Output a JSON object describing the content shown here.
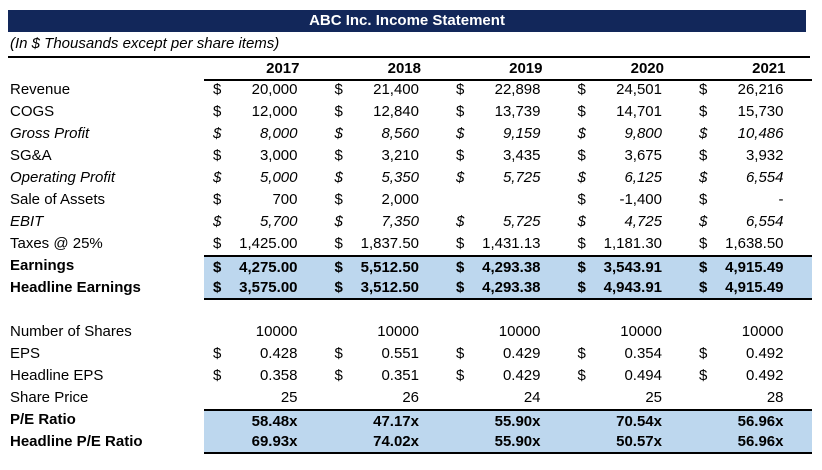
{
  "colors": {
    "title_bar_bg": "#12275A",
    "title_text": "#FFFFFF",
    "highlight_bg": "#BDD7EE",
    "rule_color": "#000000"
  },
  "title": "ABC Inc. Income Statement",
  "subtitle": "(In $ Thousands except per share items)",
  "table": {
    "columns": [
      "2017",
      "2018",
      "2019",
      "2020",
      "2021"
    ],
    "rows": [
      {
        "label": "Revenue",
        "style": "plain",
        "highlight": false,
        "cells": [
          {
            "d": "$",
            "v": "20,000"
          },
          {
            "d": "$",
            "v": "21,400"
          },
          {
            "d": "$",
            "v": "22,898"
          },
          {
            "d": "$",
            "v": "24,501"
          },
          {
            "d": "$",
            "v": "26,216"
          }
        ]
      },
      {
        "label": "COGS",
        "style": "plain",
        "highlight": false,
        "cells": [
          {
            "d": "$",
            "v": "12,000"
          },
          {
            "d": "$",
            "v": "12,840"
          },
          {
            "d": "$",
            "v": "13,739"
          },
          {
            "d": "$",
            "v": "14,701"
          },
          {
            "d": "$",
            "v": "15,730"
          }
        ]
      },
      {
        "label": "Gross Profit",
        "style": "italic",
        "highlight": false,
        "cells": [
          {
            "d": "$",
            "v": "8,000"
          },
          {
            "d": "$",
            "v": "8,560"
          },
          {
            "d": "$",
            "v": "9,159"
          },
          {
            "d": "$",
            "v": "9,800"
          },
          {
            "d": "$",
            "v": "10,486"
          }
        ]
      },
      {
        "label": "SG&A",
        "style": "plain",
        "highlight": false,
        "cells": [
          {
            "d": "$",
            "v": "3,000"
          },
          {
            "d": "$",
            "v": "3,210"
          },
          {
            "d": "$",
            "v": "3,435"
          },
          {
            "d": "$",
            "v": "3,675"
          },
          {
            "d": "$",
            "v": "3,932"
          }
        ]
      },
      {
        "label": "Operating Profit",
        "style": "italic",
        "highlight": false,
        "cells": [
          {
            "d": "$",
            "v": "5,000"
          },
          {
            "d": "$",
            "v": "5,350"
          },
          {
            "d": "$",
            "v": "5,725"
          },
          {
            "d": "$",
            "v": "6,125"
          },
          {
            "d": "$",
            "v": "6,554"
          }
        ]
      },
      {
        "label": "Sale of Assets",
        "style": "plain",
        "highlight": false,
        "cells": [
          {
            "d": "$",
            "v": "700"
          },
          {
            "d": "$",
            "v": "2,000"
          },
          {
            "d": "",
            "v": ""
          },
          {
            "d": "$",
            "v": "-1,400"
          },
          {
            "d": "$",
            "v": "-"
          }
        ]
      },
      {
        "label": "EBIT",
        "style": "italic",
        "highlight": false,
        "cells": [
          {
            "d": "$",
            "v": "5,700"
          },
          {
            "d": "$",
            "v": "7,350"
          },
          {
            "d": "$",
            "v": "5,725"
          },
          {
            "d": "$",
            "v": "4,725"
          },
          {
            "d": "$",
            "v": "6,554"
          }
        ]
      },
      {
        "label": "Taxes @ 25%",
        "style": "plain",
        "highlight": false,
        "cells": [
          {
            "d": "$",
            "v": "1,425.00"
          },
          {
            "d": "$",
            "v": "1,837.50"
          },
          {
            "d": "$",
            "v": "1,431.13"
          },
          {
            "d": "$",
            "v": "1,181.30"
          },
          {
            "d": "$",
            "v": "1,638.50"
          }
        ]
      },
      {
        "label": "Earnings",
        "style": "bold",
        "highlight": true,
        "rule_top": true,
        "cells": [
          {
            "d": "$",
            "v": "4,275.00"
          },
          {
            "d": "$",
            "v": "5,512.50"
          },
          {
            "d": "$",
            "v": "4,293.38"
          },
          {
            "d": "$",
            "v": "3,543.91"
          },
          {
            "d": "$",
            "v": "4,915.49"
          }
        ]
      },
      {
        "label": "Headline Earnings",
        "style": "bold",
        "highlight": true,
        "rule_bottom": true,
        "cells": [
          {
            "d": "$",
            "v": "3,575.00"
          },
          {
            "d": "$",
            "v": "3,512.50"
          },
          {
            "d": "$",
            "v": "4,293.38"
          },
          {
            "d": "$",
            "v": "4,943.91"
          },
          {
            "d": "$",
            "v": "4,915.49"
          }
        ]
      },
      {
        "spacer": true
      },
      {
        "label": "Number of Shares",
        "style": "plain",
        "highlight": false,
        "cells": [
          {
            "d": "",
            "v": "10000"
          },
          {
            "d": "",
            "v": "10000"
          },
          {
            "d": "",
            "v": "10000"
          },
          {
            "d": "",
            "v": "10000"
          },
          {
            "d": "",
            "v": "10000"
          }
        ]
      },
      {
        "label": "EPS",
        "style": "plain",
        "highlight": false,
        "cells": [
          {
            "d": "$",
            "v": "0.428"
          },
          {
            "d": "$",
            "v": "0.551"
          },
          {
            "d": "$",
            "v": "0.429"
          },
          {
            "d": "$",
            "v": "0.354"
          },
          {
            "d": "$",
            "v": "0.492"
          }
        ]
      },
      {
        "label": "Headline EPS",
        "style": "plain",
        "highlight": false,
        "cells": [
          {
            "d": "$",
            "v": "0.358"
          },
          {
            "d": "$",
            "v": "0.351"
          },
          {
            "d": "$",
            "v": "0.429"
          },
          {
            "d": "$",
            "v": "0.494"
          },
          {
            "d": "$",
            "v": "0.492"
          }
        ]
      },
      {
        "label": "Share Price",
        "style": "plain",
        "highlight": false,
        "cells": [
          {
            "d": "",
            "v": "25"
          },
          {
            "d": "",
            "v": "26"
          },
          {
            "d": "",
            "v": "24"
          },
          {
            "d": "",
            "v": "25"
          },
          {
            "d": "",
            "v": "28"
          }
        ]
      },
      {
        "label": "P/E Ratio",
        "style": "bold",
        "highlight": true,
        "rule_top": true,
        "gap_below": true,
        "cells": [
          {
            "d": "",
            "v": "58.48x"
          },
          {
            "d": "",
            "v": "47.17x"
          },
          {
            "d": "",
            "v": "55.90x"
          },
          {
            "d": "",
            "v": "70.54x"
          },
          {
            "d": "",
            "v": "56.96x"
          }
        ]
      },
      {
        "label": "Headline P/E Ratio",
        "style": "bold",
        "highlight": true,
        "rule_bottom": true,
        "cells": [
          {
            "d": "",
            "v": "69.93x"
          },
          {
            "d": "",
            "v": "74.02x"
          },
          {
            "d": "",
            "v": "55.90x"
          },
          {
            "d": "",
            "v": "50.57x"
          },
          {
            "d": "",
            "v": "56.96x"
          }
        ]
      }
    ]
  }
}
